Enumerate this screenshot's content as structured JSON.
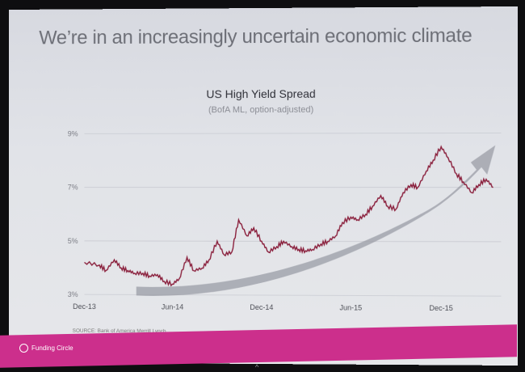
{
  "slide": {
    "headline": "We’re in an increasingly uncertain economic climate",
    "source": "SOURCE: Bank of America Merrill Lynch",
    "brand": "Funding Circle",
    "caret": "^"
  },
  "chart_data": {
    "type": "line",
    "title": "US High Yield Spread",
    "subtitle": "(BofA ML, option-adjusted)",
    "xlabel": "",
    "ylabel": "",
    "y_unit": "%",
    "ylim": [
      3,
      9
    ],
    "yticks": [
      "9%",
      "7%",
      "5%",
      "3%"
    ],
    "xticks": [
      "Dec-13",
      "Jun-14",
      "Dec-14",
      "Jun-15",
      "Dec-15"
    ],
    "grid": true,
    "line_color": "#8a1f3c",
    "trend_arrow_color": "#9a9ca6",
    "series": [
      {
        "x": [
          "2013-12-01",
          "2014-01-01",
          "2014-01-15",
          "2014-02-01",
          "2014-02-15",
          "2014-03-01",
          "2014-03-15",
          "2014-04-01",
          "2014-04-15",
          "2014-05-01",
          "2014-05-15",
          "2014-06-01",
          "2014-06-15",
          "2014-07-01",
          "2014-07-15",
          "2014-08-01",
          "2014-08-15",
          "2014-09-01",
          "2014-09-15",
          "2014-10-01",
          "2014-10-15",
          "2014-11-01",
          "2014-11-15",
          "2014-12-01",
          "2014-12-15",
          "2015-01-01",
          "2015-01-15",
          "2015-02-01",
          "2015-02-15",
          "2015-03-01",
          "2015-03-15",
          "2015-04-01",
          "2015-04-15",
          "2015-05-01",
          "2015-05-15",
          "2015-06-01",
          "2015-06-15",
          "2015-07-01",
          "2015-07-15",
          "2015-08-01",
          "2015-08-15",
          "2015-09-01",
          "2015-09-15",
          "2015-10-01",
          "2015-10-15",
          "2015-11-01",
          "2015-11-15",
          "2015-12-01",
          "2015-12-15",
          "2016-01-01",
          "2016-01-15",
          "2016-02-01",
          "2016-02-15",
          "2016-03-01",
          "2016-03-15"
        ],
        "values": [
          4.2,
          4.1,
          3.9,
          4.3,
          4.0,
          3.9,
          3.8,
          3.8,
          3.7,
          3.75,
          3.5,
          3.4,
          3.6,
          4.4,
          3.9,
          4.0,
          4.3,
          5.0,
          4.5,
          4.6,
          5.8,
          5.2,
          5.5,
          5.0,
          4.6,
          4.8,
          5.0,
          4.8,
          4.7,
          4.65,
          4.7,
          4.9,
          5.0,
          5.2,
          5.7,
          5.9,
          5.8,
          6.0,
          6.3,
          6.7,
          6.3,
          6.2,
          6.8,
          7.1,
          7.0,
          7.6,
          8.0,
          8.5,
          8.1,
          7.5,
          7.2,
          6.8,
          7.1,
          7.3,
          7.0
        ]
      }
    ]
  }
}
